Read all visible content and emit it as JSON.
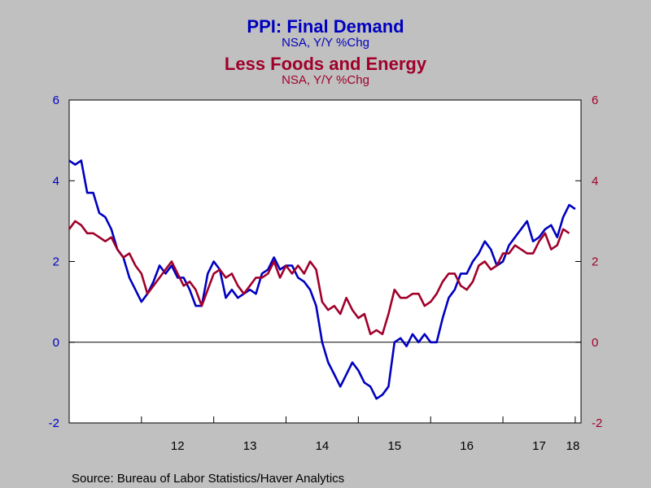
{
  "chart_data": {
    "type": "line",
    "title": "PPI: Final Demand",
    "title_subtitle": "NSA, Y/Y %Chg",
    "title2": "Less Foods and Energy",
    "title2_subtitle": "NSA, Y/Y %Chg",
    "source": "Source:  Bureau of Labor Statistics/Haver Analytics",
    "x_tick_labels": [
      "12",
      "13",
      "14",
      "15",
      "16",
      "17",
      "18"
    ],
    "x_range": [
      2011.0,
      2018.08
    ],
    "y_left_range": [
      -2,
      6
    ],
    "y_right_range": [
      -2,
      6
    ],
    "y_ticks": [
      "6",
      "4",
      "2",
      "0",
      "-2"
    ],
    "grid": false,
    "zero_line": true,
    "colors": {
      "series1": "#0000c0",
      "series2": "#a0002a",
      "background": "#c0c0c0",
      "plot_bg": "#ffffff"
    },
    "x_start": "2011-01",
    "series": [
      {
        "name": "PPI: Final Demand",
        "color": "#0000c0",
        "values": [
          4.5,
          4.4,
          4.5,
          3.7,
          3.7,
          3.2,
          3.1,
          2.8,
          2.3,
          2.1,
          1.6,
          1.3,
          1.0,
          1.2,
          1.5,
          1.9,
          1.7,
          1.9,
          1.6,
          1.6,
          1.3,
          0.9,
          0.9,
          1.7,
          2.0,
          1.8,
          1.1,
          1.3,
          1.1,
          1.2,
          1.3,
          1.2,
          1.7,
          1.8,
          2.1,
          1.8,
          1.9,
          1.9,
          1.6,
          1.5,
          1.3,
          0.9,
          0.0,
          -0.5,
          -0.8,
          -1.1,
          -0.8,
          -0.5,
          -0.7,
          -1.0,
          -1.1,
          -1.4,
          -1.3,
          -1.1,
          0.0,
          0.1,
          -0.1,
          0.2,
          0.0,
          0.2,
          0.0,
          0.0,
          0.6,
          1.1,
          1.3,
          1.7,
          1.7,
          2.0,
          2.2,
          2.5,
          2.3,
          1.9,
          2.0,
          2.4,
          2.6,
          2.8,
          3.0,
          2.5,
          2.6,
          2.8,
          2.9,
          2.6,
          3.1,
          3.4,
          3.3
        ]
      },
      {
        "name": "Less Foods and Energy",
        "color": "#a0002a",
        "values": [
          2.8,
          3.0,
          2.9,
          2.7,
          2.7,
          2.6,
          2.5,
          2.6,
          2.3,
          2.1,
          2.2,
          1.9,
          1.7,
          1.2,
          1.4,
          1.6,
          1.8,
          2.0,
          1.7,
          1.4,
          1.5,
          1.3,
          0.9,
          1.3,
          1.7,
          1.8,
          1.6,
          1.7,
          1.4,
          1.2,
          1.4,
          1.6,
          1.6,
          1.7,
          2.0,
          1.6,
          1.9,
          1.7,
          1.9,
          1.7,
          2.0,
          1.8,
          1.0,
          0.8,
          0.9,
          0.7,
          1.1,
          0.8,
          0.6,
          0.7,
          0.2,
          0.3,
          0.2,
          0.7,
          1.3,
          1.1,
          1.1,
          1.2,
          1.2,
          0.9,
          1.0,
          1.2,
          1.5,
          1.7,
          1.7,
          1.4,
          1.3,
          1.5,
          1.9,
          2.0,
          1.8,
          1.9,
          2.2,
          2.2,
          2.4,
          2.3,
          2.2,
          2.2,
          2.5,
          2.7,
          2.3,
          2.4,
          2.8,
          2.7
        ]
      }
    ]
  }
}
